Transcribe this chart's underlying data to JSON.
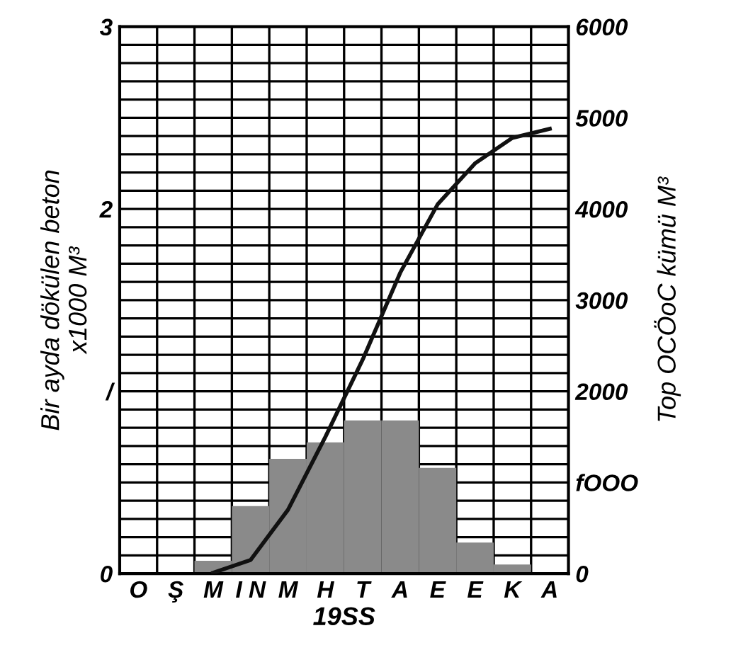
{
  "chart_data": {
    "type": "bar",
    "xlabel": "19SS",
    "ylabel": "Bir ayda dökülen beton\nx1000 M³",
    "y2label": "Top OCÖoC kümü M³",
    "categories": [
      "O",
      "Ş",
      "M",
      "I N",
      "M",
      "H",
      "T",
      "A",
      "E",
      "E",
      "K",
      "A"
    ],
    "series": [
      {
        "color": "#8a8a8a",
        "values": [
          0,
          0,
          0.07,
          0.37,
          0.63,
          0.72,
          0.84,
          0.84,
          0.58,
          0.17,
          0.05,
          0
        ]
      },
      {
        "type": "line",
        "axis": "y2",
        "color": "#111111",
        "values": [
          null,
          null,
          10,
          150,
          700,
          1500,
          2350,
          3300,
          4050,
          4500,
          4780,
          4880
        ]
      }
    ],
    "ylim": [
      0,
      3
    ],
    "yticks": [
      0,
      {
        "value": 0.1,
        "label": null
      },
      {
        "value": 0.2,
        "label": null
      },
      {
        "value": 0.3,
        "label": null
      },
      {
        "value": 0.4,
        "label": null
      },
      {
        "value": 0.5,
        "label": null
      },
      {
        "value": 0.6,
        "label": null
      },
      {
        "value": 0.7,
        "label": null
      },
      {
        "value": 0.8,
        "label": null
      },
      {
        "value": 0.9,
        "label": null
      },
      {
        "value": 1,
        "label": "/"
      },
      {
        "value": 1.1,
        "label": null
      },
      {
        "value": 1.2,
        "label": null
      },
      {
        "value": 1.3,
        "label": null
      },
      {
        "value": 1.4,
        "label": null
      },
      {
        "value": 1.5,
        "label": null
      },
      {
        "value": 1.6,
        "label": null
      },
      {
        "value": 1.7,
        "label": null
      },
      {
        "value": 1.8,
        "label": null
      },
      {
        "value": 1.9,
        "label": null
      },
      2,
      {
        "value": 2.1,
        "label": null
      },
      {
        "value": 2.2,
        "label": null
      },
      {
        "value": 2.3,
        "label": null
      },
      {
        "value": 2.4,
        "label": null
      },
      {
        "value": 2.5,
        "label": null
      },
      {
        "value": 2.6,
        "label": null
      },
      {
        "value": 2.7,
        "label": null
      },
      {
        "value": 2.8,
        "label": null
      },
      {
        "value": 2.9,
        "label": null
      },
      3
    ],
    "y2lim": [
      0,
      6000
    ],
    "y2ticks": [
      0,
      {
        "value": 1000,
        "label": "fOOO"
      },
      2000,
      3000,
      4000,
      5000,
      6000
    ],
    "grid": true,
    "line_style": "solid",
    "marker": "none"
  }
}
